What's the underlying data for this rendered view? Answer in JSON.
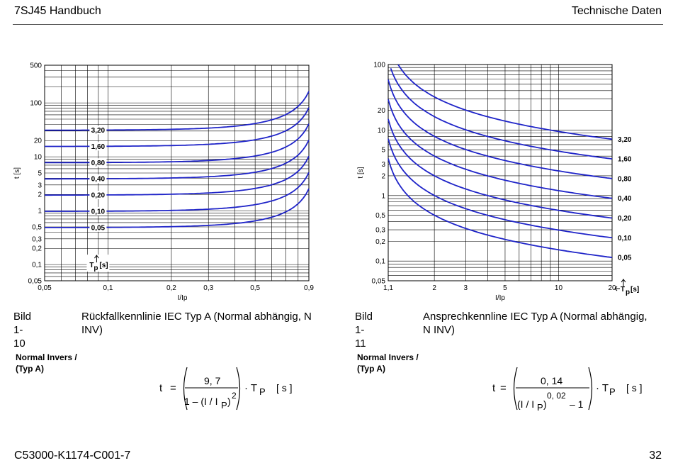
{
  "header": {
    "left": "7SJ45 Handbuch",
    "right": "Technische Daten"
  },
  "footer": {
    "left": "C53000-K1174-C001-7",
    "right": "32"
  },
  "charts": [
    {
      "caption_number": "Bild 1-10",
      "caption_text": "Rückfallkennlinie IEC Typ A (Normal abhängig, N INV)",
      "type_label_line1": "Normal Invers /",
      "type_label_line2": "(Typ A)",
      "xlabel": "I/Ip",
      "ylabel": "t [s]",
      "x_ticks": [
        "0,05",
        "0,1",
        "0,2",
        "0,3",
        "0,5",
        "0,9"
      ],
      "y_ticks": [
        "500",
        "100",
        "20",
        "10",
        "5",
        "3",
        "2",
        "1",
        "0,5",
        "0,3",
        "0,2",
        "0,1",
        "0,05"
      ],
      "param_label": "T",
      "param_sub": "p",
      "param_unit": "[s]",
      "formula": {
        "t": "t",
        "eq": "=",
        "num": "9, 7",
        "den_a": "1 – (I / I",
        "den_sub": "P",
        "den_b": ")",
        "exp": "2",
        "dot": "· T",
        "tp_sub": "P",
        "unit": "[ s ]"
      }
    },
    {
      "caption_number": "Bild 1-11",
      "caption_text": "Ansprechkennline IEC Typ A (Normal abhängig, N INV)",
      "type_label_line1": "Normal Invers /",
      "type_label_line2": "(Typ A)",
      "xlabel": "I/Ip",
      "ylabel": "t [s]",
      "x_ticks": [
        "1,1",
        "2",
        "3",
        "5",
        "10",
        "20"
      ],
      "y_ticks": [
        "100",
        "20",
        "10",
        "5",
        "3",
        "2",
        "1",
        "0,5",
        "0,3",
        "0,2",
        "0,1",
        "0,05"
      ],
      "param_label": "T",
      "param_sub": "p",
      "param_unit": "[s]",
      "formula": {
        "t": "t",
        "eq": "=",
        "num": "0, 14",
        "den_a": "(I / I",
        "den_sub": "P",
        "den_b": ")",
        "exp": "0, 02",
        "minus": "– 1",
        "dot": "· T",
        "tp_sub": "P",
        "unit": "[ s ]"
      }
    }
  ],
  "chart_data": [
    {
      "type": "line",
      "title": "Rückfallkennlinie IEC Typ A (Normal abhängig, N INV)",
      "xlabel": "I/Ip",
      "ylabel": "t [s]",
      "xscale": "log",
      "yscale": "log",
      "xlim": [
        0.05,
        0.9
      ],
      "ylim": [
        0.05,
        500
      ],
      "grid": true,
      "formula": "t = 9.7 / (1 - (I/Ip)^2) * Tp",
      "x": [
        0.05,
        0.1,
        0.2,
        0.3,
        0.5,
        0.7,
        0.8,
        0.9
      ],
      "series": [
        {
          "name": "3,20",
          "values": [
            31.12,
            31.35,
            32.33,
            34.11,
            41.39,
            60.87,
            86.23,
            163.4
          ]
        },
        {
          "name": "1,60",
          "values": [
            15.56,
            15.68,
            16.17,
            17.05,
            20.69,
            30.43,
            43.11,
            81.68
          ]
        },
        {
          "name": "0,80",
          "values": [
            7.78,
            7.84,
            8.08,
            8.53,
            10.35,
            15.22,
            21.56,
            40.84
          ]
        },
        {
          "name": "0,40",
          "values": [
            3.89,
            3.92,
            4.04,
            4.26,
            5.17,
            7.61,
            10.78,
            20.42
          ]
        },
        {
          "name": "0,20",
          "values": [
            1.95,
            1.96,
            2.02,
            2.13,
            2.59,
            3.8,
            5.39,
            10.21
          ]
        },
        {
          "name": "0,10",
          "values": [
            0.97,
            0.98,
            1.01,
            1.07,
            1.29,
            1.9,
            2.69,
            5.11
          ]
        },
        {
          "name": "0,05",
          "values": [
            0.49,
            0.49,
            0.51,
            0.53,
            0.65,
            0.95,
            1.35,
            2.55
          ]
        }
      ]
    },
    {
      "type": "line",
      "title": "Ansprechkennline IEC Typ A (Normal abhängig, N INV)",
      "xlabel": "I/Ip",
      "ylabel": "t [s]",
      "xscale": "log",
      "yscale": "log",
      "xlim": [
        1.1,
        20
      ],
      "ylim": [
        0.05,
        100
      ],
      "grid": true,
      "formula": "t = 0.14 / ((I/Ip)^0.02 - 1) * Tp",
      "x": [
        1.1,
        1.5,
        2,
        3,
        5,
        10,
        20
      ],
      "series": [
        {
          "name": "3,20",
          "values": [
            234.7,
            55.26,
            32.1,
            19.8,
            13.8,
            9.66,
            7.44
          ]
        },
        {
          "name": "1,60",
          "values": [
            117.3,
            27.63,
            16.05,
            9.9,
            6.9,
            4.83,
            3.72
          ]
        },
        {
          "name": "0,80",
          "values": [
            58.67,
            13.82,
            8.02,
            4.95,
            3.45,
            2.42,
            1.86
          ]
        },
        {
          "name": "0,40",
          "values": [
            29.34,
            6.91,
            4.01,
            2.48,
            1.72,
            1.21,
            0.93
          ]
        },
        {
          "name": "0,20",
          "values": [
            14.67,
            3.45,
            2.01,
            1.24,
            0.86,
            0.6,
            0.47
          ]
        },
        {
          "name": "0,10",
          "values": [
            7.33,
            1.73,
            1.0,
            0.62,
            0.43,
            0.3,
            0.23
          ]
        },
        {
          "name": "0,05",
          "values": [
            3.67,
            0.86,
            0.5,
            0.31,
            0.22,
            0.15,
            0.12
          ]
        }
      ]
    }
  ]
}
